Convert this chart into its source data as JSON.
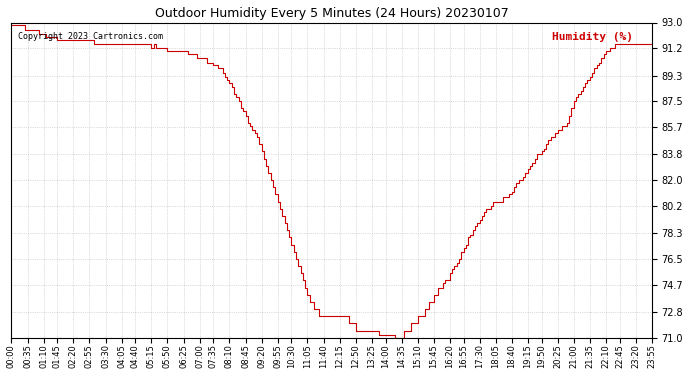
{
  "title": "Outdoor Humidity Every 5 Minutes (24 Hours) 20230107",
  "copyright_text": "Copyright 2023 Cartronics.com",
  "legend_text": "Humidity (%)",
  "line_color": "#cc0000",
  "background_color": "#ffffff",
  "grid_color": "#bbbbbb",
  "title_color": "#000000",
  "copyright_color": "#000000",
  "ylim": [
    71.0,
    93.0
  ],
  "yticks": [
    71.0,
    72.8,
    74.7,
    76.5,
    78.3,
    80.2,
    82.0,
    83.8,
    85.7,
    87.5,
    89.3,
    91.2,
    93.0
  ],
  "x_tick_labels": [
    "00:00",
    "00:35",
    "01:10",
    "01:45",
    "02:20",
    "02:55",
    "03:30",
    "04:05",
    "04:40",
    "05:15",
    "05:50",
    "06:25",
    "07:00",
    "07:35",
    "08:10",
    "08:45",
    "09:20",
    "09:55",
    "10:30",
    "11:05",
    "11:40",
    "12:15",
    "12:50",
    "13:25",
    "14:00",
    "14:35",
    "15:10",
    "15:45",
    "16:20",
    "16:55",
    "17:30",
    "18:05",
    "18:40",
    "19:15",
    "19:50",
    "20:25",
    "21:00",
    "21:35",
    "22:10",
    "22:45",
    "23:20",
    "23:55"
  ],
  "humidity_data": [
    92.8,
    92.8,
    92.8,
    92.8,
    92.8,
    92.8,
    92.5,
    92.5,
    92.5,
    92.5,
    92.5,
    92.5,
    92.2,
    92.2,
    92.2,
    92.0,
    92.0,
    92.0,
    92.0,
    92.0,
    91.8,
    91.8,
    91.8,
    91.8,
    91.8,
    91.8,
    91.8,
    91.8,
    91.8,
    91.8,
    91.8,
    91.8,
    91.8,
    91.8,
    91.8,
    91.8,
    91.5,
    91.5,
    91.5,
    91.5,
    91.5,
    91.5,
    91.5,
    91.5,
    91.5,
    91.5,
    91.5,
    91.5,
    91.5,
    91.5,
    91.5,
    91.5,
    91.5,
    91.5,
    91.5,
    91.5,
    91.5,
    91.5,
    91.5,
    91.5,
    91.5,
    91.2,
    91.5,
    91.2,
    91.2,
    91.2,
    91.2,
    91.2,
    91.0,
    91.0,
    91.0,
    91.0,
    91.0,
    91.0,
    91.0,
    91.0,
    91.0,
    90.8,
    90.8,
    90.8,
    90.8,
    90.5,
    90.5,
    90.5,
    90.5,
    90.2,
    90.2,
    90.2,
    90.0,
    90.0,
    89.8,
    89.8,
    89.5,
    89.2,
    89.0,
    88.8,
    88.5,
    88.0,
    87.8,
    87.5,
    87.0,
    86.8,
    86.5,
    86.0,
    85.8,
    85.5,
    85.3,
    85.0,
    84.5,
    84.0,
    83.5,
    83.0,
    82.5,
    82.0,
    81.5,
    81.0,
    80.5,
    80.0,
    79.5,
    79.0,
    78.5,
    78.0,
    77.5,
    77.0,
    76.5,
    76.0,
    75.5,
    75.0,
    74.5,
    74.0,
    73.5,
    73.5,
    73.0,
    73.0,
    72.5,
    72.5,
    72.5,
    72.5,
    72.5,
    72.5,
    72.5,
    72.5,
    72.5,
    72.5,
    72.5,
    72.5,
    72.5,
    72.0,
    72.0,
    72.0,
    71.5,
    71.5,
    71.5,
    71.5,
    71.5,
    71.5,
    71.5,
    71.5,
    71.5,
    71.5,
    71.2,
    71.2,
    71.2,
    71.2,
    71.2,
    71.2,
    71.2,
    71.0,
    71.0,
    71.0,
    71.0,
    71.5,
    71.5,
    71.5,
    72.0,
    72.0,
    72.0,
    72.5,
    72.5,
    72.5,
    73.0,
    73.0,
    73.5,
    73.5,
    74.0,
    74.0,
    74.5,
    74.5,
    74.8,
    75.0,
    75.0,
    75.5,
    75.8,
    76.0,
    76.2,
    76.5,
    77.0,
    77.3,
    77.5,
    78.0,
    78.2,
    78.5,
    78.8,
    79.0,
    79.2,
    79.5,
    79.8,
    80.0,
    80.0,
    80.2,
    80.5,
    80.5,
    80.5,
    80.5,
    80.8,
    80.8,
    80.8,
    81.0,
    81.2,
    81.5,
    81.8,
    82.0,
    82.0,
    82.2,
    82.5,
    82.8,
    83.0,
    83.2,
    83.5,
    83.8,
    83.8,
    84.0,
    84.2,
    84.5,
    84.8,
    85.0,
    85.0,
    85.3,
    85.5,
    85.5,
    85.8,
    85.8,
    86.0,
    86.5,
    87.0,
    87.5,
    87.8,
    88.0,
    88.2,
    88.5,
    88.8,
    89.0,
    89.2,
    89.5,
    89.8,
    90.0,
    90.2,
    90.5,
    90.8,
    91.0,
    91.0,
    91.2,
    91.2,
    91.5,
    91.5,
    91.5,
    91.5,
    91.5,
    91.5,
    91.5,
    91.5,
    91.5,
    91.5,
    91.5,
    91.5,
    91.5,
    91.5,
    91.5,
    91.5,
    91.5
  ]
}
